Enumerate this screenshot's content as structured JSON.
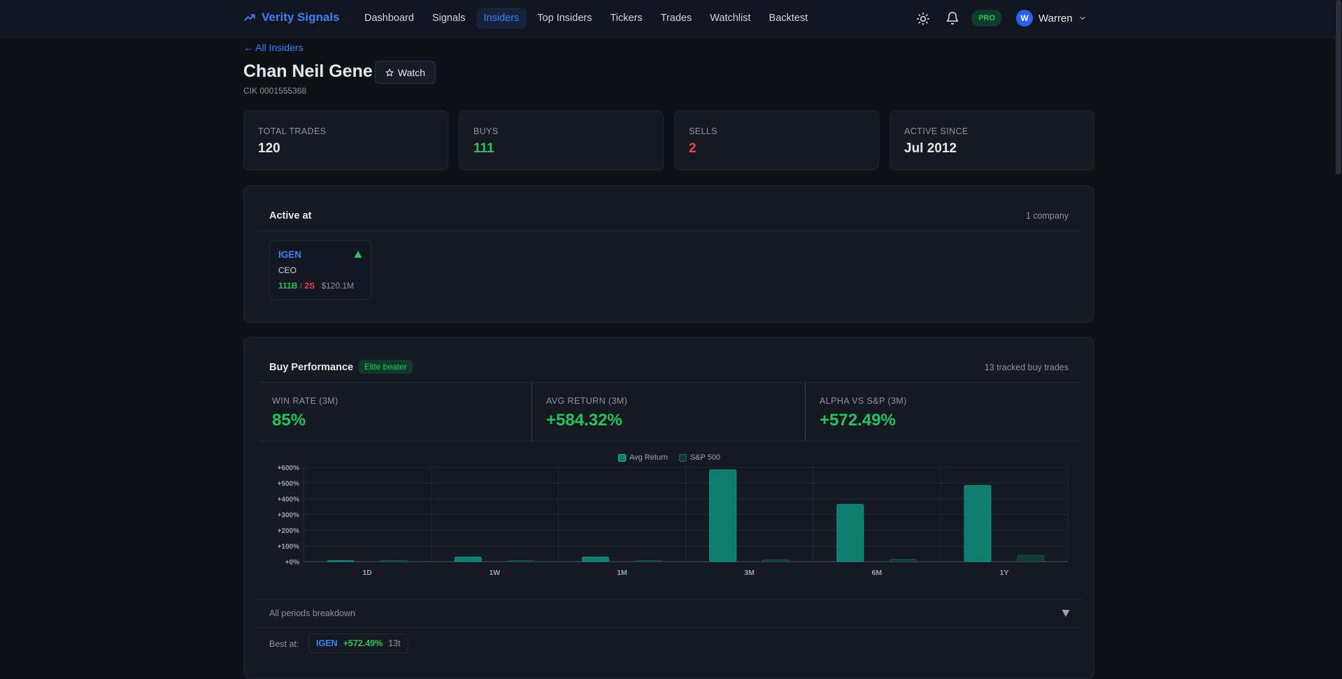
{
  "nav": {
    "brand": "Verity Signals",
    "links": [
      {
        "label": "Dashboard"
      },
      {
        "label": "Signals"
      },
      {
        "label": "Insiders",
        "active": true
      },
      {
        "label": "Top Insiders"
      },
      {
        "label": "Tickers"
      },
      {
        "label": "Trades"
      },
      {
        "label": "Watchlist"
      },
      {
        "label": "Backtest"
      }
    ],
    "pro_badge": "PRO",
    "user": {
      "initial": "W",
      "name": "Warren"
    }
  },
  "header": {
    "back_link": "← All Insiders",
    "name": "Chan Neil Gene",
    "watch_label": "Watch",
    "cik": "CIK 0001555368"
  },
  "stats": [
    {
      "label": "TOTAL TRADES",
      "value": "120",
      "color": "#e5e7eb"
    },
    {
      "label": "BUYS",
      "value": "111",
      "color": "#22c55e"
    },
    {
      "label": "SELLS",
      "value": "2",
      "color": "#ef4444"
    },
    {
      "label": "ACTIVE SINCE",
      "value": "Jul 2012",
      "color": "#e5e7eb"
    }
  ],
  "active_at": {
    "title": "Active at",
    "meta": "1 company",
    "companies": [
      {
        "ticker": "IGEN",
        "role": "CEO",
        "buys": "111B",
        "sep": "/",
        "sells": "2S",
        "value": "$120.1M"
      }
    ]
  },
  "performance": {
    "title": "Buy Performance",
    "badge": "Elite beater",
    "meta": "13 tracked buy trades",
    "metrics": [
      {
        "label": "WIN RATE (3M)",
        "value": "85%"
      },
      {
        "label": "AVG RETURN (3M)",
        "value": "+584.32%"
      },
      {
        "label": "ALPHA VS S&P (3M)",
        "value": "+572.49%"
      }
    ],
    "breakdown_label": "All periods breakdown",
    "best_at": {
      "label": "Best at:",
      "ticker": "IGEN",
      "return": "+572.49%",
      "count": "13t"
    }
  },
  "chart_data": {
    "type": "bar",
    "categories": [
      "1D",
      "1W",
      "1M",
      "3M",
      "6M",
      "1Y"
    ],
    "series": [
      {
        "name": "Avg Return",
        "values": [
          0.5,
          30,
          30,
          584.32,
          365,
          485
        ],
        "color": "#0f7d6d"
      },
      {
        "name": "S&P 500",
        "values": [
          0.2,
          0.5,
          1,
          11.83,
          15,
          40
        ],
        "color": "#0f3b35"
      }
    ],
    "yticks": [
      "+0%",
      "+100%",
      "+200%",
      "+300%",
      "+400%",
      "+500%",
      "+600%"
    ],
    "ylim": [
      0,
      600
    ],
    "grid": true,
    "legend": "top-center"
  }
}
